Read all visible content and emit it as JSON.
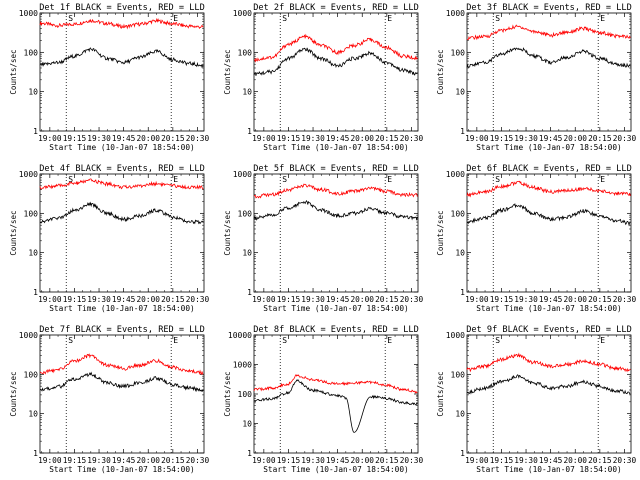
{
  "chart_data": [
    {
      "type": "line",
      "title": "Det 1f BLACK = Events, RED = LLD",
      "xlabel": "Start Time (10-Jan-07 18:54:00)",
      "ylabel": "Counts/sec",
      "yscale": "log",
      "ylim": [
        1,
        1000
      ],
      "x_ticks": [
        "19:00",
        "19:15",
        "19:30",
        "19:45",
        "20:00",
        "20:15",
        "20:30"
      ],
      "y_ticks": [
        "1",
        "10",
        "100",
        "1000"
      ],
      "markers": [
        "S",
        "E"
      ],
      "series": [
        {
          "color": "#ff0000",
          "x": [
            "18:54",
            "19:05",
            "19:15",
            "19:25",
            "19:35",
            "19:45",
            "19:55",
            "20:05",
            "20:15",
            "20:25",
            "20:34"
          ],
          "values": [
            550,
            480,
            520,
            640,
            540,
            450,
            520,
            630,
            530,
            460,
            440
          ]
        },
        {
          "color": "#000000",
          "x": [
            "18:54",
            "19:05",
            "19:15",
            "19:25",
            "19:35",
            "19:45",
            "19:55",
            "20:05",
            "20:15",
            "20:25",
            "20:34"
          ],
          "values": [
            48,
            55,
            80,
            120,
            70,
            55,
            75,
            105,
            65,
            52,
            45
          ]
        }
      ]
    },
    {
      "type": "line",
      "title": "Det 2f BLACK = Events, RED = LLD",
      "xlabel": "Start Time (10-Jan-07 18:54:00)",
      "ylabel": "Counts/sec",
      "yscale": "log",
      "ylim": [
        1,
        1000
      ],
      "x_ticks": [
        "19:00",
        "19:15",
        "19:30",
        "19:45",
        "20:00",
        "20:15",
        "20:30"
      ],
      "y_ticks": [
        "1",
        "10",
        "100",
        "1000"
      ],
      "markers": [
        "S",
        "E"
      ],
      "series": [
        {
          "color": "#ff0000",
          "x": [
            "18:54",
            "19:05",
            "19:15",
            "19:25",
            "19:35",
            "19:45",
            "19:55",
            "20:05",
            "20:15",
            "20:25",
            "20:34"
          ],
          "values": [
            65,
            75,
            160,
            250,
            150,
            100,
            150,
            210,
            130,
            80,
            70
          ]
        },
        {
          "color": "#000000",
          "x": [
            "18:54",
            "19:05",
            "19:15",
            "19:25",
            "19:35",
            "19:45",
            "19:55",
            "20:05",
            "20:15",
            "20:25",
            "20:34"
          ],
          "values": [
            28,
            32,
            70,
            120,
            70,
            45,
            70,
            95,
            55,
            35,
            28
          ]
        }
      ]
    },
    {
      "type": "line",
      "title": "Det 3f BLACK = Events, RED = LLD",
      "xlabel": "Start Time (10-Jan-07 18:54:00)",
      "ylabel": "Counts/sec",
      "yscale": "log",
      "ylim": [
        1,
        1000
      ],
      "x_ticks": [
        "19:00",
        "19:15",
        "19:30",
        "19:45",
        "20:00",
        "20:15",
        "20:30"
      ],
      "y_ticks": [
        "1",
        "10",
        "100",
        "1000"
      ],
      "markers": [
        "S",
        "E"
      ],
      "series": [
        {
          "color": "#ff0000",
          "x": [
            "18:54",
            "19:05",
            "19:15",
            "19:25",
            "19:35",
            "19:45",
            "19:55",
            "20:05",
            "20:15",
            "20:25",
            "20:34"
          ],
          "values": [
            230,
            250,
            360,
            450,
            340,
            270,
            330,
            400,
            320,
            260,
            240
          ]
        },
        {
          "color": "#000000",
          "x": [
            "18:54",
            "19:05",
            "19:15",
            "19:25",
            "19:35",
            "19:45",
            "19:55",
            "20:05",
            "20:15",
            "20:25",
            "20:34"
          ],
          "values": [
            45,
            55,
            90,
            130,
            80,
            55,
            75,
            105,
            70,
            50,
            45
          ]
        }
      ]
    },
    {
      "type": "line",
      "title": "Det 4f BLACK = Events, RED = LLD",
      "xlabel": "Start Time (10-Jan-07 18:54:00)",
      "ylabel": "Counts/sec",
      "yscale": "log",
      "ylim": [
        1,
        1000
      ],
      "x_ticks": [
        "19:00",
        "19:15",
        "19:30",
        "19:45",
        "20:00",
        "20:15",
        "20:30"
      ],
      "y_ticks": [
        "1",
        "10",
        "100",
        "1000"
      ],
      "markers": [
        "S",
        "E"
      ],
      "series": [
        {
          "color": "#ff0000",
          "x": [
            "18:54",
            "19:05",
            "19:15",
            "19:25",
            "19:35",
            "19:45",
            "19:55",
            "20:05",
            "20:15",
            "20:25",
            "20:34"
          ],
          "values": [
            450,
            500,
            580,
            680,
            560,
            460,
            500,
            570,
            500,
            460,
            450
          ]
        },
        {
          "color": "#000000",
          "x": [
            "18:54",
            "19:05",
            "19:15",
            "19:25",
            "19:35",
            "19:45",
            "19:55",
            "20:05",
            "20:15",
            "20:25",
            "20:34"
          ],
          "values": [
            62,
            75,
            120,
            170,
            100,
            70,
            85,
            120,
            80,
            62,
            58
          ]
        }
      ]
    },
    {
      "type": "line",
      "title": "Det 5f BLACK = Events, RED = LLD",
      "xlabel": "Start Time (10-Jan-07 18:54:00)",
      "ylabel": "Counts/sec",
      "yscale": "log",
      "ylim": [
        1,
        1000
      ],
      "x_ticks": [
        "19:00",
        "19:15",
        "19:30",
        "19:45",
        "20:00",
        "20:15",
        "20:30"
      ],
      "y_ticks": [
        "1",
        "10",
        "100",
        "1000"
      ],
      "markers": [
        "S",
        "E"
      ],
      "series": [
        {
          "color": "#ff0000",
          "x": [
            "18:54",
            "19:05",
            "19:15",
            "19:25",
            "19:35",
            "19:45",
            "19:55",
            "20:05",
            "20:15",
            "20:25",
            "20:34"
          ],
          "values": [
            270,
            300,
            400,
            500,
            400,
            320,
            360,
            430,
            360,
            300,
            290
          ]
        },
        {
          "color": "#000000",
          "x": [
            "18:54",
            "19:05",
            "19:15",
            "19:25",
            "19:35",
            "19:45",
            "19:55",
            "20:05",
            "20:15",
            "20:25",
            "20:34"
          ],
          "values": [
            75,
            90,
            140,
            190,
            120,
            85,
            100,
            130,
            100,
            80,
            75
          ]
        }
      ]
    },
    {
      "type": "line",
      "title": "Det 6f BLACK = Events, RED = LLD",
      "xlabel": "Start Time (10-Jan-07 18:54:00)",
      "ylabel": "Counts/sec",
      "yscale": "log",
      "ylim": [
        1,
        1000
      ],
      "x_ticks": [
        "19:00",
        "19:15",
        "19:30",
        "19:45",
        "20:00",
        "20:15",
        "20:30"
      ],
      "y_ticks": [
        "1",
        "10",
        "100",
        "1000"
      ],
      "markers": [
        "S",
        "E"
      ],
      "series": [
        {
          "color": "#ff0000",
          "x": [
            "18:54",
            "19:05",
            "19:15",
            "19:25",
            "19:35",
            "19:45",
            "19:55",
            "20:05",
            "20:15",
            "20:25",
            "20:34"
          ],
          "values": [
            300,
            350,
            480,
            600,
            450,
            350,
            380,
            420,
            370,
            320,
            300
          ]
        },
        {
          "color": "#000000",
          "x": [
            "18:54",
            "19:05",
            "19:15",
            "19:25",
            "19:35",
            "19:45",
            "19:55",
            "20:05",
            "20:15",
            "20:25",
            "20:34"
          ],
          "values": [
            60,
            75,
            120,
            160,
            100,
            70,
            80,
            115,
            85,
            65,
            55
          ]
        }
      ]
    },
    {
      "type": "line",
      "title": "Det 7f BLACK = Events, RED = LLD",
      "xlabel": "Start Time (10-Jan-07 18:54:00)",
      "ylabel": "Counts/sec",
      "yscale": "log",
      "ylim": [
        1,
        1000
      ],
      "x_ticks": [
        "19:00",
        "19:15",
        "19:30",
        "19:45",
        "20:00",
        "20:15",
        "20:30"
      ],
      "y_ticks": [
        "1",
        "10",
        "100",
        "1000"
      ],
      "markers": [
        "S",
        "E"
      ],
      "series": [
        {
          "color": "#ff0000",
          "x": [
            "18:54",
            "19:05",
            "19:15",
            "19:25",
            "19:35",
            "19:45",
            "19:55",
            "20:05",
            "20:15",
            "20:25",
            "20:34"
          ],
          "values": [
            110,
            130,
            220,
            300,
            170,
            140,
            170,
            220,
            150,
            120,
            110
          ]
        },
        {
          "color": "#000000",
          "x": [
            "18:54",
            "19:05",
            "19:15",
            "19:25",
            "19:35",
            "19:45",
            "19:55",
            "20:05",
            "20:15",
            "20:25",
            "20:34"
          ],
          "values": [
            40,
            48,
            75,
            100,
            60,
            50,
            60,
            80,
            55,
            45,
            40
          ]
        }
      ]
    },
    {
      "type": "line",
      "title": "Det 8f BLACK = Events, RED = LLD",
      "xlabel": "Start Time (10-Jan-07 18:54:00)",
      "ylabel": "Counts/sec",
      "yscale": "log",
      "ylim": [
        1,
        10000
      ],
      "x_ticks": [
        "19:00",
        "19:15",
        "19:30",
        "19:45",
        "20:00",
        "20:15",
        "20:30"
      ],
      "y_ticks": [
        "1",
        "10",
        "100",
        "1000",
        "10000"
      ],
      "markers": [
        "S",
        "E"
      ],
      "series": [
        {
          "color": "#ff0000",
          "x": [
            "18:54",
            "19:05",
            "19:15",
            "19:20",
            "19:30",
            "19:45",
            "19:55",
            "20:05",
            "20:15",
            "20:25",
            "20:34"
          ],
          "values": [
            140,
            160,
            220,
            420,
            300,
            220,
            240,
            250,
            200,
            140,
            120
          ]
        },
        {
          "color": "#000000",
          "x": [
            "18:54",
            "19:05",
            "19:15",
            "19:20",
            "19:30",
            "19:45",
            "19:50",
            "19:55",
            "20:05",
            "20:15",
            "20:25",
            "20:34"
          ],
          "values": [
            60,
            70,
            110,
            280,
            130,
            90,
            75,
            5,
            80,
            70,
            50,
            45
          ]
        }
      ]
    },
    {
      "type": "line",
      "title": "Det 9f BLACK = Events, RED = LLD",
      "xlabel": "Start Time (10-Jan-07 18:54:00)",
      "ylabel": "Counts/sec",
      "yscale": "log",
      "ylim": [
        1,
        1000
      ],
      "x_ticks": [
        "19:00",
        "19:15",
        "19:30",
        "19:45",
        "20:00",
        "20:15",
        "20:30"
      ],
      "y_ticks": [
        "1",
        "10",
        "100",
        "1000"
      ],
      "markers": [
        "S",
        "E"
      ],
      "series": [
        {
          "color": "#ff0000",
          "x": [
            "18:54",
            "19:05",
            "19:15",
            "19:25",
            "19:35",
            "19:45",
            "19:55",
            "20:05",
            "20:15",
            "20:25",
            "20:34"
          ],
          "values": [
            130,
            160,
            240,
            300,
            200,
            160,
            180,
            220,
            180,
            140,
            130
          ]
        },
        {
          "color": "#000000",
          "x": [
            "18:54",
            "19:05",
            "19:15",
            "19:25",
            "19:35",
            "19:45",
            "19:55",
            "20:05",
            "20:15",
            "20:25",
            "20:34"
          ],
          "values": [
            35,
            45,
            65,
            90,
            60,
            45,
            50,
            65,
            50,
            38,
            35
          ]
        }
      ]
    }
  ]
}
